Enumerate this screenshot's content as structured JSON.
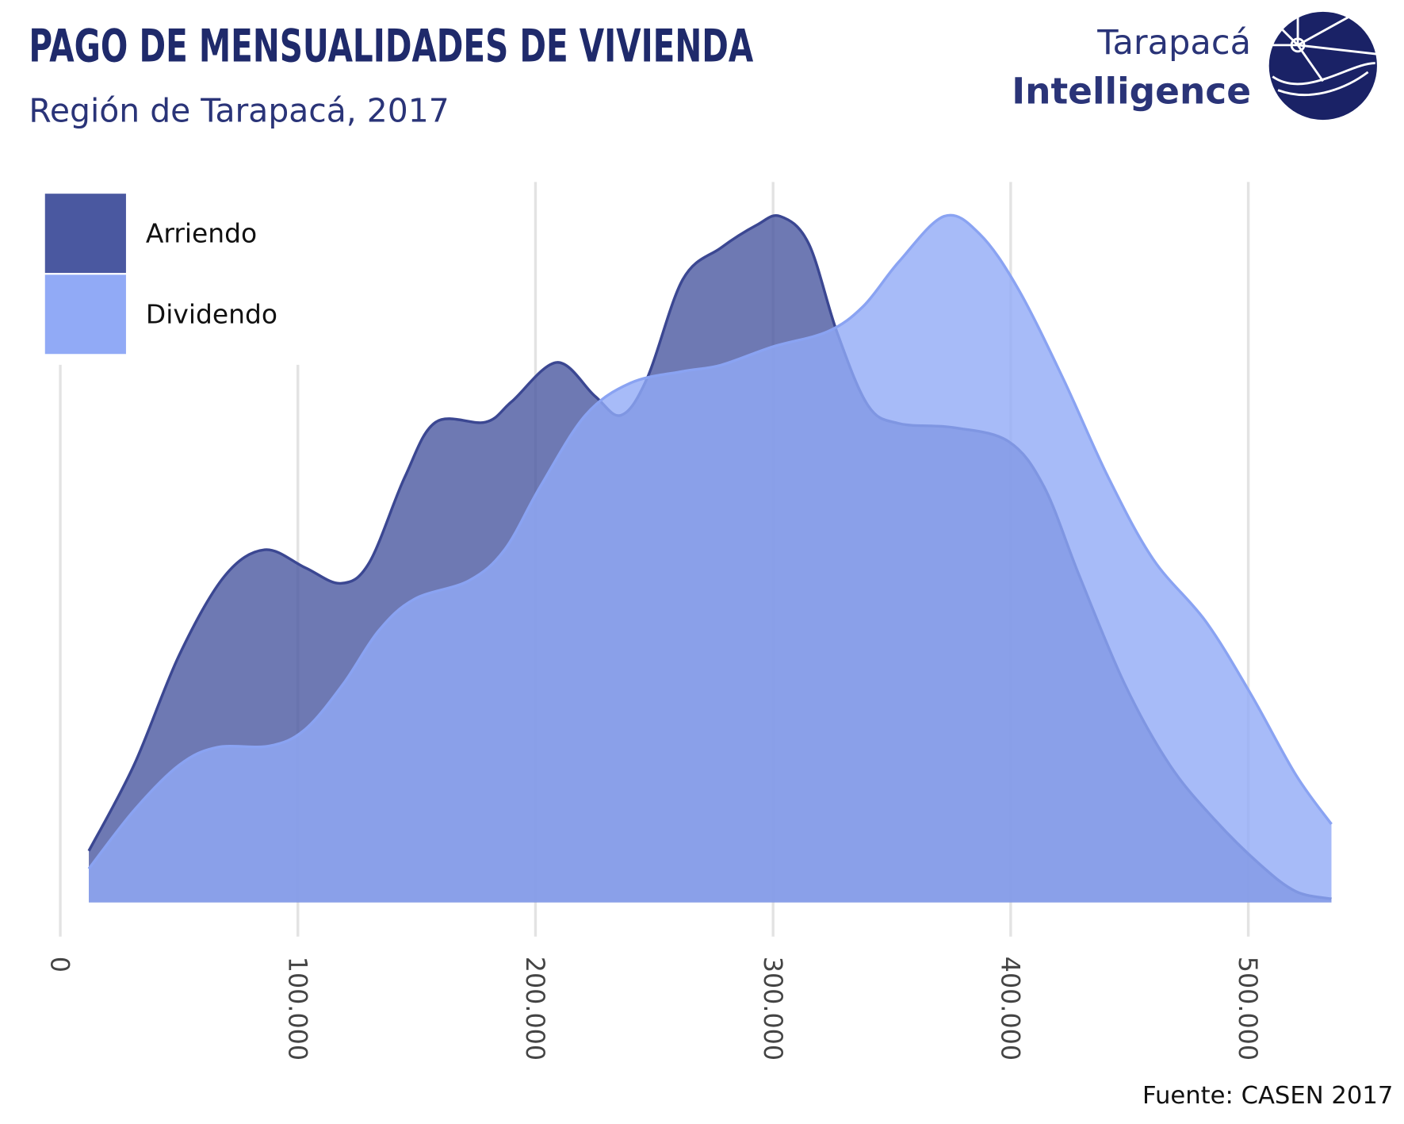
{
  "chart_data": {
    "type": "density",
    "title": "PAGO DE MENSUALIDADES DE VIVIENDA",
    "subtitle": "Región de Tarapacá, 2017",
    "source": "Fuente: CASEN 2017",
    "xlim": [
      0,
      535000
    ],
    "ylim": [
      0,
      105
    ],
    "xticks": [
      0,
      {
        "value": 100000,
        "label": "100.000"
      },
      {
        "value": 200000,
        "label": "200.000"
      },
      {
        "value": 300000,
        "label": "300.000"
      },
      {
        "value": 400000,
        "label": "400.000"
      },
      {
        "value": 500000,
        "label": "500.000"
      }
    ],
    "grid": true,
    "legend": "top-left",
    "series": [
      {
        "name": "Arriendo",
        "color": "#4a58a0",
        "x": [
          12000,
          31000,
          50000,
          69000,
          86000,
          103000,
          118000,
          130000,
          145000,
          158000,
          179000,
          190000,
          209000,
          225000,
          236000,
          247000,
          262000,
          278000,
          293000,
          303000,
          315000,
          327000,
          340000,
          353000,
          376000,
          399000,
          414000,
          429000,
          448000,
          467000,
          486000,
          505000,
          520000,
          535000
        ],
        "values": [
          7.5,
          20,
          36,
          47.5,
          51.4,
          48.8,
          46.5,
          49.5,
          62,
          70,
          70,
          73,
          78.7,
          73.8,
          71,
          76.4,
          90.8,
          95.4,
          98.7,
          100,
          96,
          83,
          72.4,
          69.8,
          69.2,
          67.2,
          60.6,
          47.5,
          31.8,
          20,
          12,
          5.5,
          1.6,
          0.5
        ]
      },
      {
        "name": "Dividendo",
        "color": "#91aaf6",
        "x": [
          12000,
          31000,
          50000,
          66000,
          88000,
          103000,
          119000,
          134000,
          149000,
          172000,
          187000,
          202000,
          221000,
          240000,
          262000,
          278000,
          300000,
          323000,
          338000,
          353000,
          372000,
          387000,
          403000,
          422000,
          441000,
          460000,
          482000,
          501000,
          520000,
          535000
        ],
        "values": [
          4.9,
          13.4,
          20,
          22.6,
          22.8,
          25.2,
          31.8,
          39.6,
          44.2,
          46.9,
          51.4,
          60.6,
          71,
          75.7,
          77.4,
          78.3,
          81,
          83.2,
          86.9,
          93.4,
          100,
          97.4,
          89.5,
          76.4,
          62,
          50,
          41,
          30.4,
          18.6,
          11.4
        ]
      }
    ]
  },
  "logo": {
    "line1": "Tarapacá",
    "line2": "Intelligence"
  }
}
